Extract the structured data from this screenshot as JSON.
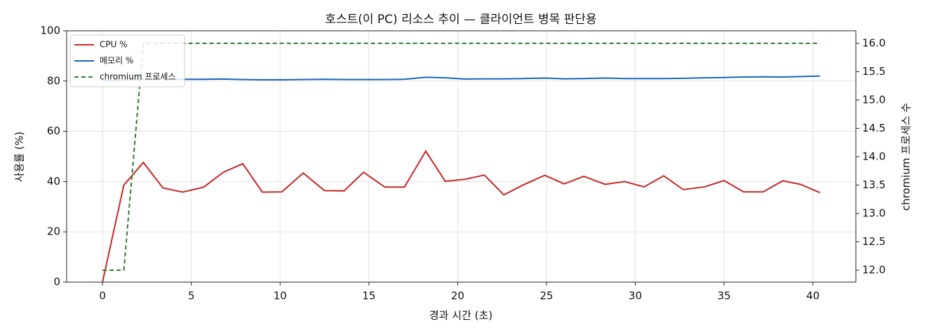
{
  "chart_data": {
    "type": "line",
    "title": "호스트(이 PC) 리소스 추이 — 클라이언트 병목 판단용",
    "xlabel": "경과 시간 (초)",
    "ylabel": "사용률 (%)",
    "y2label": "chromium 프로세스 수",
    "x": [
      0,
      1.2,
      2.3,
      3.4,
      4.5,
      5.7,
      6.8,
      7.9,
      9.0,
      10.1,
      11.3,
      12.5,
      13.6,
      14.7,
      15.9,
      17.0,
      18.2,
      19.3,
      20.4,
      21.5,
      22.6,
      23.7,
      24.9,
      26.0,
      27.1,
      28.3,
      29.4,
      30.5,
      31.6,
      32.7,
      33.9,
      35.0,
      36.1,
      37.2,
      38.3,
      39.3,
      40.4
    ],
    "series": [
      {
        "name": "CPU %",
        "color": "#c62828",
        "dash": false,
        "values": [
          0,
          38.6,
          47.6,
          37.5,
          35.8,
          37.8,
          43.7,
          47.1,
          35.8,
          35.9,
          43.4,
          36.4,
          36.3,
          43.7,
          37.8,
          37.8,
          52.1,
          40.1,
          40.9,
          42.6,
          34.7,
          38.7,
          42.5,
          39.1,
          42.1,
          38.9,
          40.0,
          37.9,
          42.3,
          36.8,
          37.9,
          40.4,
          35.9,
          35.9,
          40.3,
          38.9,
          35.6
        ]
      },
      {
        "name": "메모리 %",
        "color": "#1565c0",
        "dash": false,
        "values": [
          80.1,
          80.4,
          80.6,
          80.7,
          80.7,
          80.7,
          80.8,
          80.6,
          80.5,
          80.5,
          80.6,
          80.7,
          80.6,
          80.6,
          80.6,
          80.7,
          81.5,
          81.3,
          80.8,
          80.9,
          80.9,
          81.0,
          81.2,
          80.9,
          81.0,
          81.2,
          81.0,
          81.0,
          81.0,
          81.1,
          81.3,
          81.4,
          81.6,
          81.7,
          81.6,
          81.8,
          82.0
        ]
      },
      {
        "name": "chromium 프로세스",
        "color": "#2e7d32",
        "dash": true,
        "axis": "y2",
        "values": [
          12,
          12,
          16,
          16,
          16,
          16,
          16,
          16,
          16,
          16,
          16,
          16,
          16,
          16,
          16,
          16,
          16,
          16,
          16,
          16,
          16,
          16,
          16,
          16,
          16,
          16,
          16,
          16,
          16,
          16,
          16,
          16,
          16,
          16,
          16,
          16,
          16
        ]
      }
    ],
    "xlim": [
      -2.02,
      42.42
    ],
    "xticks": [
      0,
      5,
      10,
      15,
      20,
      25,
      30,
      35,
      40
    ],
    "ylim": [
      0,
      100
    ],
    "yticks": [
      0,
      20,
      40,
      60,
      80,
      100
    ],
    "y2lim": [
      11.79,
      16.22
    ],
    "y2ticks": [
      {
        "value": 12,
        "label": "12.0"
      },
      12.5,
      {
        "value": 13,
        "label": "13.0"
      },
      13.5,
      {
        "value": 14,
        "label": "14.0"
      },
      14.5,
      {
        "value": 15,
        "label": "15.0"
      },
      15.5,
      {
        "value": 16,
        "label": "16.0"
      }
    ],
    "grid": true,
    "legend": "upper left"
  }
}
